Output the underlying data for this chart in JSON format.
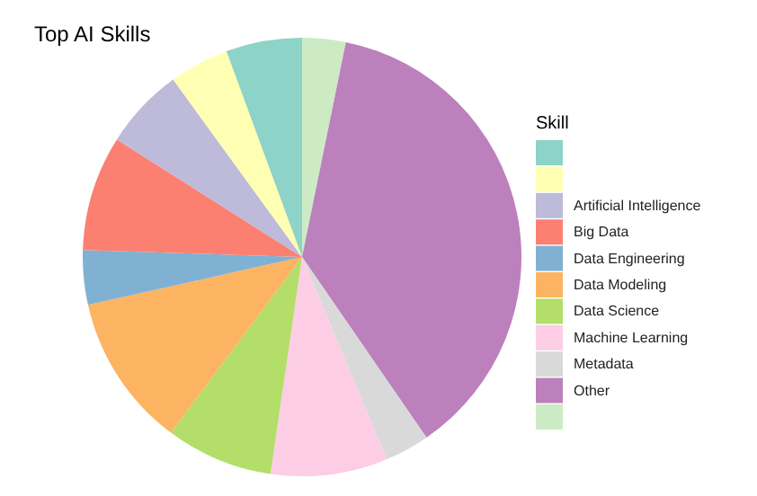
{
  "chart_data": {
    "type": "pie",
    "title": "Top AI Skills",
    "legend_title": "Skill",
    "legend": "right",
    "categories": [
      null,
      null,
      "Artificial Intelligence",
      "Big Data",
      "Data Engineering",
      "Data Modeling",
      "Data Science",
      "Machine Learning",
      "Metadata",
      "Other",
      null
    ],
    "values": [
      5.6,
      4.4,
      6.0,
      8.5,
      4.0,
      11.3,
      7.9,
      8.6,
      3.3,
      37.2,
      3.2
    ],
    "colors": [
      "#8dd3c7",
      "#ffffb3",
      "#bebada",
      "#fb8072",
      "#80b1d3",
      "#fdb462",
      "#b3de69",
      "#fccde5",
      "#d9d9d9",
      "#bc80bd",
      "#ccebc5"
    ]
  }
}
